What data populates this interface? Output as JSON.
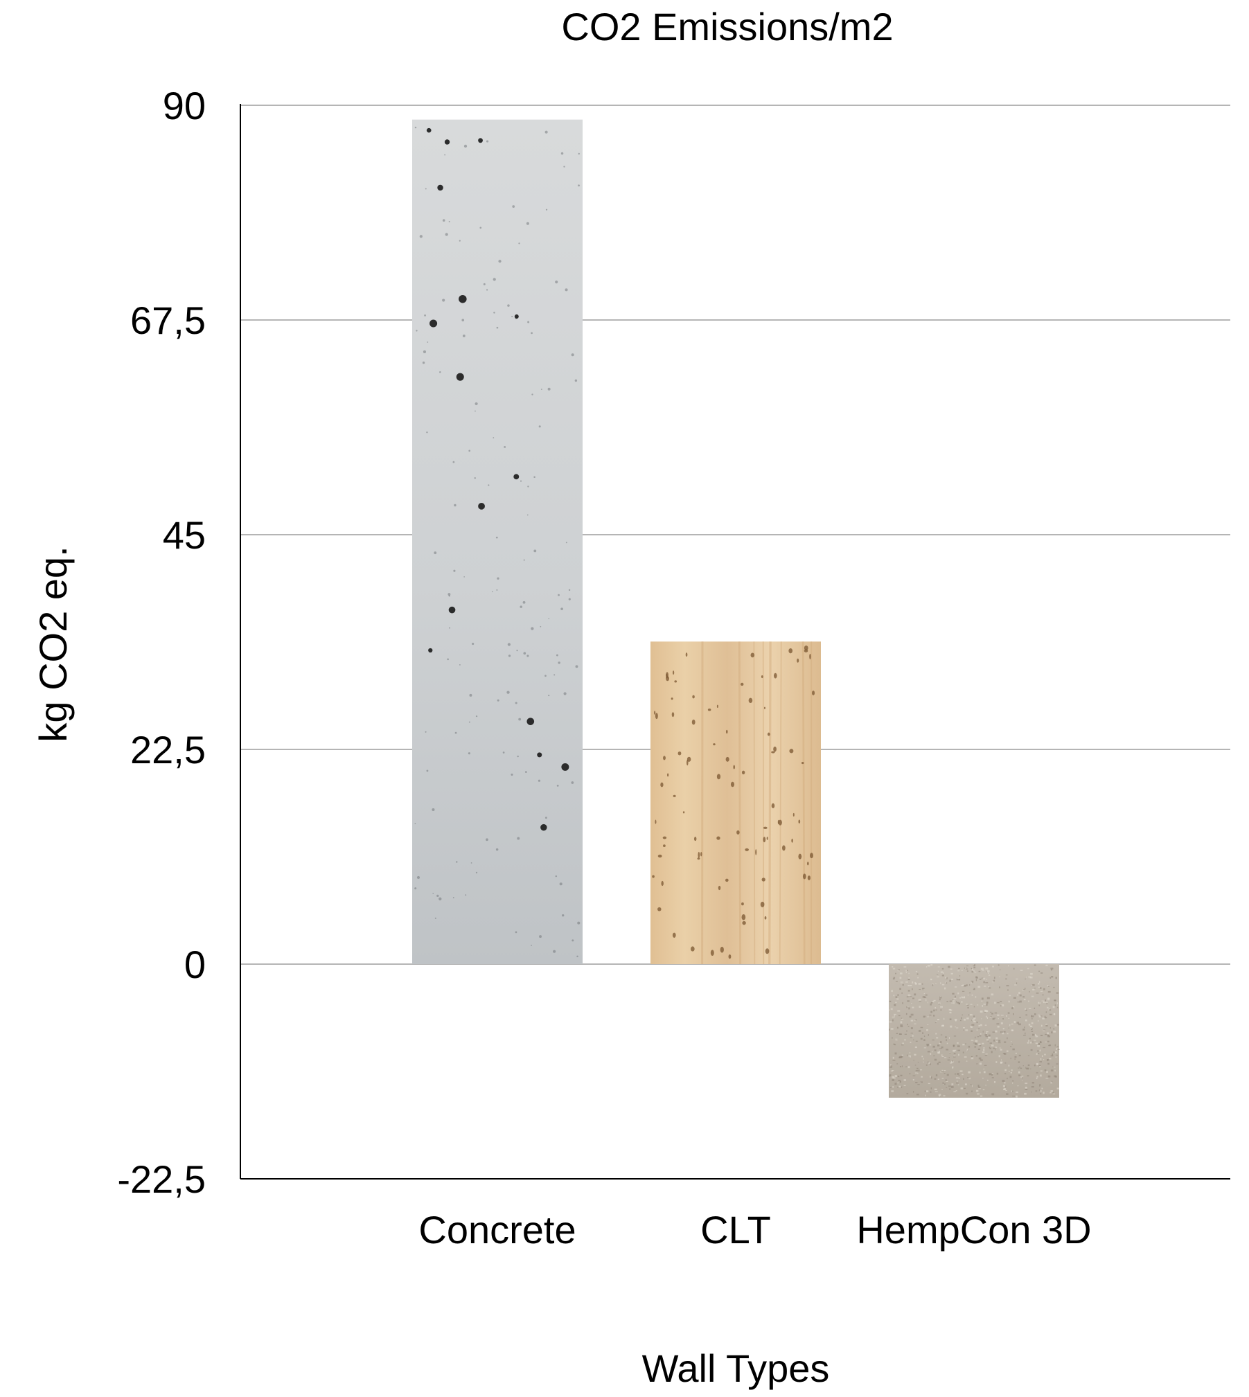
{
  "chart_data": {
    "type": "bar",
    "title": "CO2 Emissions/m2",
    "xlabel": "Wall Types",
    "ylabel": "kg CO2 eq.",
    "categories": [
      "Concrete",
      "CLT",
      "HempCon 3D"
    ],
    "values": [
      88.5,
      33.8,
      -14.0
    ],
    "ylim": [
      -22.5,
      90
    ],
    "yticks": [
      90,
      67.5,
      45,
      22.5,
      0,
      -22.5
    ],
    "ytick_labels": [
      "90",
      "67,5",
      "45",
      "22,5",
      "0",
      "-22,5"
    ],
    "grid": true,
    "bar_textures": [
      "concrete",
      "wood",
      "hempcrete"
    ],
    "bar_colors": [
      "#cfd2d4",
      "#e3c49a",
      "#bdb3a6"
    ]
  }
}
